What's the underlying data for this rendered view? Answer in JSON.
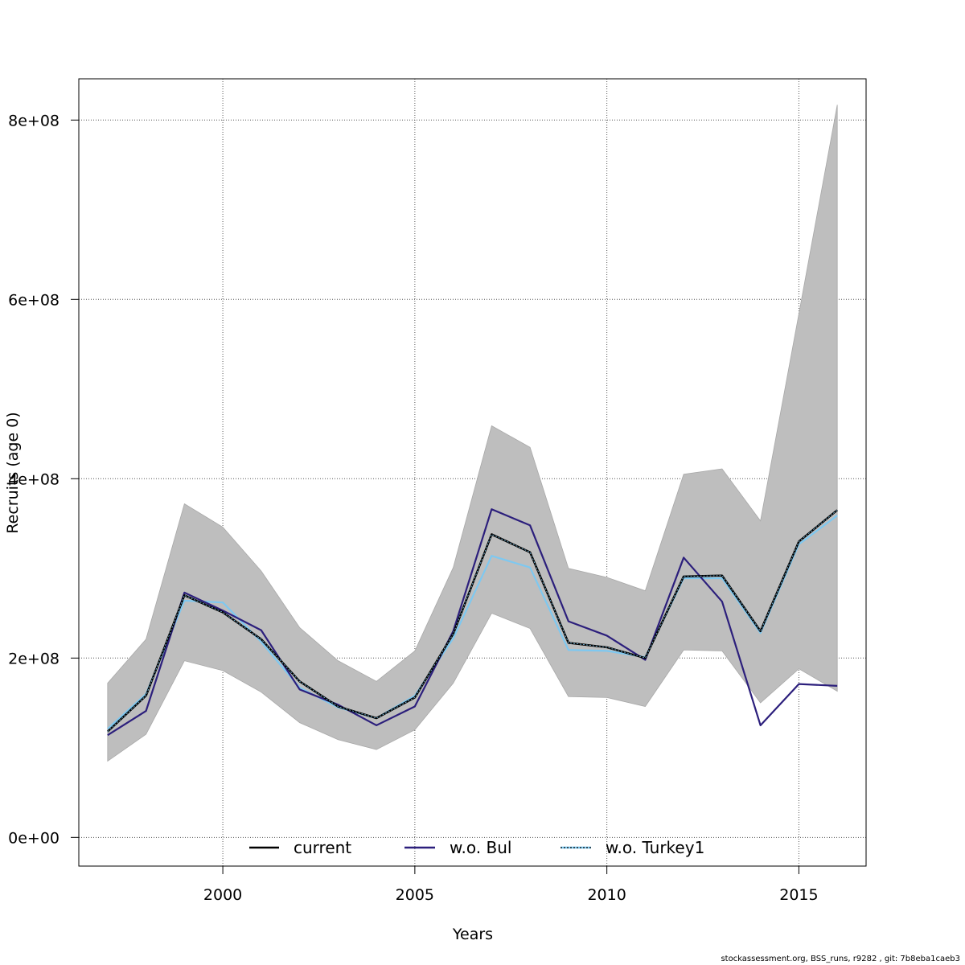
{
  "chart_data": {
    "type": "line",
    "xlabel": "Years",
    "ylabel": "Recruits (age 0)",
    "xlim": [
      1996.25,
      2016.75
    ],
    "ylim": [
      -32000000,
      846000000
    ],
    "x_ticks": [
      2000,
      2005,
      2010,
      2015
    ],
    "x_tick_labels": [
      "2000",
      "2005",
      "2010",
      "2015"
    ],
    "y_ticks": [
      0,
      200000000,
      400000000,
      600000000,
      800000000
    ],
    "y_tick_labels": [
      "0e+00",
      "2e+08",
      "4e+08",
      "6e+08",
      "8e+08"
    ],
    "grid": true,
    "legend_position": "bottom",
    "x": [
      1997,
      1998,
      1999,
      2000,
      2001,
      2002,
      2003,
      2004,
      2005,
      2006,
      2007,
      2008,
      2009,
      2010,
      2011,
      2012,
      2013,
      2014,
      2015,
      2016
    ],
    "band": {
      "color": "#bebebe",
      "lower": [
        85000000,
        115000000,
        197000000,
        186000000,
        162000000,
        128000000,
        109000000,
        98000000,
        120000000,
        172000000,
        250000000,
        233000000,
        157000000,
        156000000,
        146000000,
        209000000,
        208000000,
        150000000,
        188000000,
        163000000
      ],
      "upper": [
        172000000,
        221000000,
        372000000,
        346000000,
        297000000,
        234000000,
        197000000,
        174000000,
        208000000,
        301000000,
        459000000,
        435000000,
        300000000,
        290000000,
        275000000,
        405000000,
        411000000,
        353000000,
        584000000,
        817000000
      ]
    },
    "series": [
      {
        "name": "current",
        "color": "#000000",
        "values": [
          118000000,
          158000000,
          270000000,
          251000000,
          221000000,
          174000000,
          146000000,
          133000000,
          156000000,
          227000000,
          338000000,
          318000000,
          217000000,
          212000000,
          200000000,
          291000000,
          292000000,
          230000000,
          330000000,
          365000000
        ]
      },
      {
        "name": "w.o. Bul",
        "color": "#2c1f7c",
        "values": [
          114000000,
          141000000,
          273000000,
          253000000,
          231000000,
          165000000,
          148000000,
          125000000,
          146000000,
          230000000,
          366000000,
          348000000,
          241000000,
          225000000,
          198000000,
          312000000,
          263000000,
          125000000,
          171000000,
          169000000
        ]
      },
      {
        "name": "w.o. Turkey1",
        "color": "#7ec8f0",
        "values": [
          121000000,
          160000000,
          264000000,
          262000000,
          218000000,
          167000000,
          145000000,
          133000000,
          158000000,
          222000000,
          314000000,
          301000000,
          209000000,
          208000000,
          201000000,
          289000000,
          289000000,
          228000000,
          327000000,
          359000000
        ]
      }
    ]
  },
  "legend": {
    "current": "current",
    "wo_bul": "w.o. Bul",
    "wo_turkey1": "w.o. Turkey1"
  },
  "footer": "stockassessment.org, BSS_runs, r9282 , git: 7b8eba1caeb3"
}
